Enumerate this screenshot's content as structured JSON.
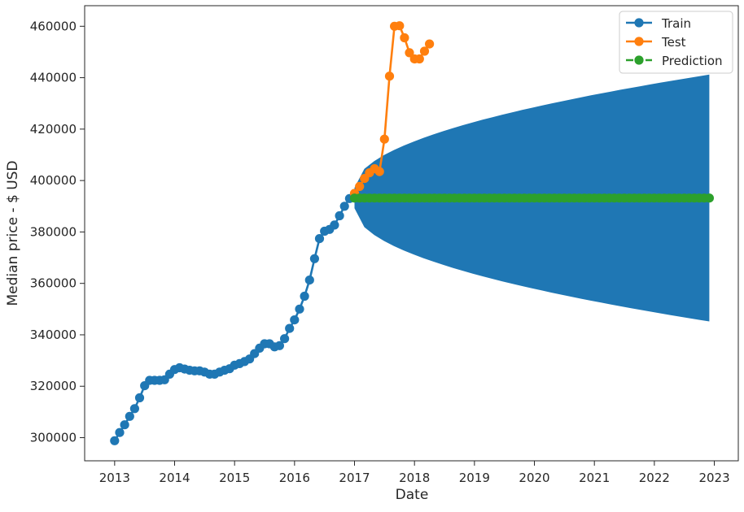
{
  "chart_data": {
    "type": "line",
    "title": "",
    "xlabel": "Date",
    "ylabel": "Median price - $ USD",
    "xlim": [
      2012.5,
      2023.4
    ],
    "ylim": [
      291000,
      468000
    ],
    "x_ticks": [
      2013,
      2014,
      2015,
      2016,
      2017,
      2018,
      2019,
      2020,
      2021,
      2022,
      2023
    ],
    "x_tick_labels": [
      "2013",
      "2014",
      "2015",
      "2016",
      "2017",
      "2018",
      "2019",
      "2020",
      "2021",
      "2022",
      "2023"
    ],
    "y_ticks": [
      300000,
      320000,
      340000,
      360000,
      380000,
      400000,
      420000,
      440000,
      460000
    ],
    "y_tick_labels": [
      "300000",
      "320000",
      "340000",
      "360000",
      "380000",
      "400000",
      "420000",
      "440000",
      "460000"
    ],
    "grid": false,
    "legend_position": "top-right",
    "colors": {
      "train": "#1f77b4",
      "test": "#ff7f0e",
      "prediction": "#2ca02c",
      "interval": "#1f77b4"
    },
    "series": [
      {
        "name": "Train",
        "style": "solid line with circle markers",
        "values": [
          298800,
          302000,
          305000,
          308300,
          311300,
          315500,
          320200,
          322300,
          322300,
          322300,
          322500,
          324700,
          326500,
          327200,
          326700,
          326200,
          326000,
          326000,
          325500,
          324700,
          324700,
          325500,
          326200,
          326800,
          328200,
          328800,
          329600,
          330600,
          332700,
          334800,
          336500,
          336500,
          335300,
          335800,
          338500,
          342500,
          345800,
          350000,
          355000,
          361300,
          369600,
          377400,
          380300,
          381000,
          382700,
          386300,
          390000,
          393000
        ]
      },
      {
        "name": "Test",
        "style": "solid line with circle markers",
        "values": [
          395000,
          397700,
          400800,
          403000,
          404600,
          403500,
          416100,
          440600,
          460000,
          460200,
          455500,
          449700,
          447300,
          447300,
          450300,
          453100
        ]
      },
      {
        "name": "Prediction",
        "style": "dashed line with circle markers",
        "value": 393200,
        "x_start": 2017.0,
        "x_end": 2022.917,
        "interval_start_halfwidth": 4000,
        "interval_end_halfwidth": 48000
      }
    ],
    "train_x_start": 2013.0,
    "test_x_start": 2017.0,
    "month_step": 0.08333
  }
}
